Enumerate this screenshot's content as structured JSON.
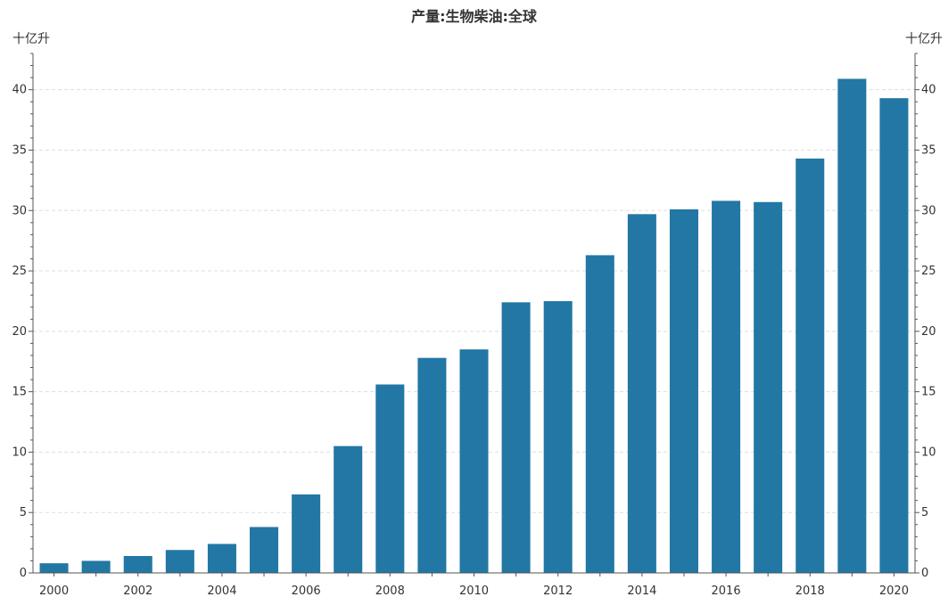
{
  "chart_data": {
    "type": "bar",
    "title": "产量:生物柴油:全球",
    "unit_left": "十亿升",
    "unit_right": "十亿升",
    "categories": [
      "2000",
      "2001",
      "2002",
      "2003",
      "2004",
      "2005",
      "2006",
      "2007",
      "2008",
      "2009",
      "2010",
      "2011",
      "2012",
      "2013",
      "2014",
      "2015",
      "2016",
      "2017",
      "2018",
      "2019",
      "2020"
    ],
    "values": [
      0.8,
      1.0,
      1.4,
      1.9,
      2.4,
      3.8,
      6.5,
      10.5,
      15.6,
      17.8,
      18.5,
      22.4,
      22.5,
      26.3,
      29.7,
      30.1,
      30.8,
      30.7,
      34.3,
      40.9,
      39.3
    ],
    "x_tick_labels": [
      "2000",
      "2002",
      "2004",
      "2006",
      "2008",
      "2010",
      "2012",
      "2014",
      "2016",
      "2018",
      "2020"
    ],
    "y_ticks": [
      0,
      5,
      10,
      15,
      20,
      25,
      30,
      35,
      40
    ],
    "ylim": [
      0,
      43
    ],
    "grid": true,
    "bar_color": "#2277a4"
  }
}
